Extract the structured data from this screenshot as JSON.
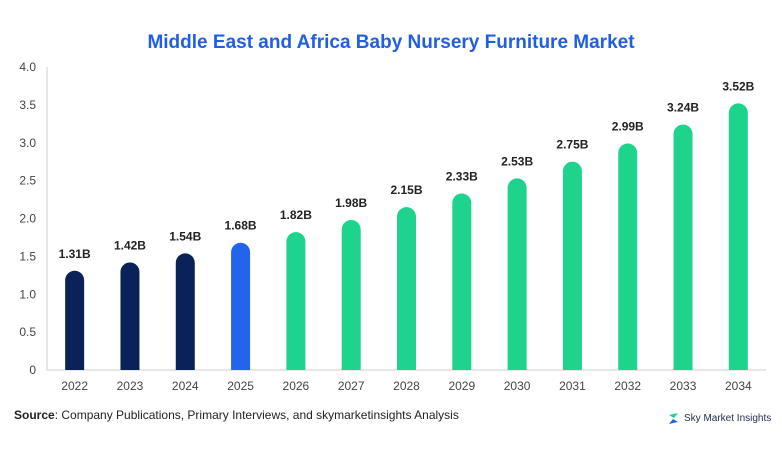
{
  "chart_data": {
    "type": "bar",
    "title": "Middle East and Africa Baby Nursery Furniture Market",
    "xlabel": "",
    "ylabel": "",
    "categories": [
      "2022",
      "2023",
      "2024",
      "2025",
      "2026",
      "2027",
      "2028",
      "2029",
      "2030",
      "2031",
      "2032",
      "2033",
      "2034"
    ],
    "values": [
      1.31,
      1.42,
      1.54,
      1.68,
      1.82,
      1.98,
      2.15,
      2.33,
      2.53,
      2.75,
      2.99,
      3.24,
      3.52
    ],
    "data_labels": [
      "1.31B",
      "1.42B",
      "1.54B",
      "1.68B",
      "1.82B",
      "1.98B",
      "2.15B",
      "2.33B",
      "2.53B",
      "2.75B",
      "2.99B",
      "3.24B",
      "3.52B"
    ],
    "ylim": [
      0,
      4.0
    ],
    "yticks": [
      "0",
      "0.5",
      "1.0",
      "1.5",
      "2.0",
      "2.5",
      "3.0",
      "3.5",
      "4.0"
    ],
    "grid": false,
    "legend": "none",
    "bar_colors": [
      "#0b2259",
      "#0b2259",
      "#0b2259",
      "#2463eb",
      "#1ed48c",
      "#1ed48c",
      "#1ed48c",
      "#1ed48c",
      "#1ed48c",
      "#1ed48c",
      "#1ed48c",
      "#1ed48c",
      "#1ed48c"
    ]
  },
  "footer": {
    "source_label": "Source",
    "source_text": ": Company Publications, Primary Interviews, and skymarketinsights Analysis",
    "brand": "Sky Market Insights",
    "brand_icon": "brand-logo-icon"
  }
}
